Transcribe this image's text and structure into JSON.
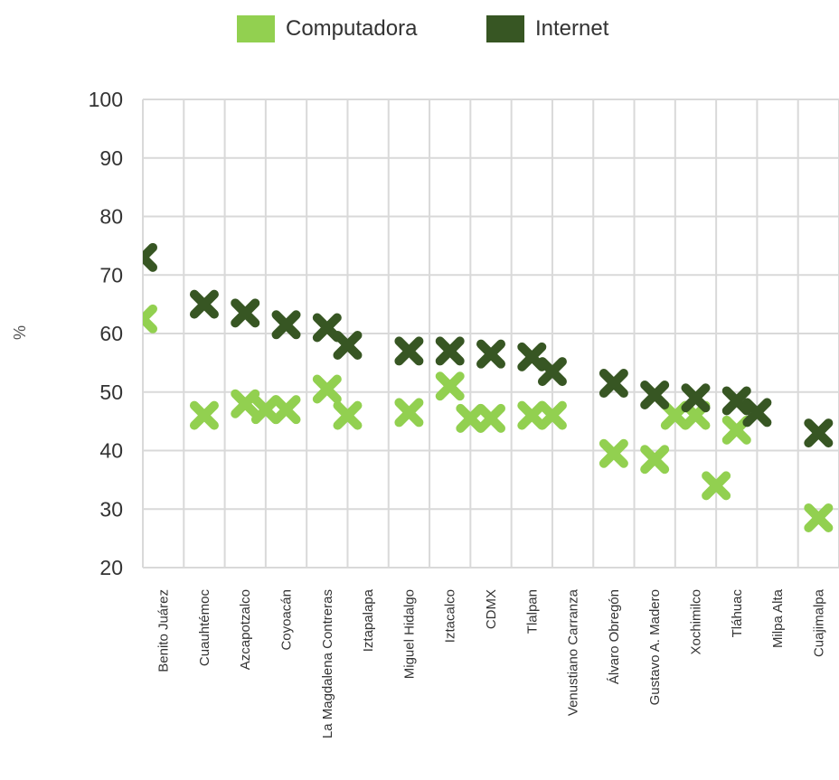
{
  "chart_data": {
    "type": "scatter",
    "ylabel": "%",
    "ylim": [
      20,
      100
    ],
    "yticks": [
      20,
      30,
      40,
      50,
      60,
      70,
      80,
      90,
      100
    ],
    "grid": true,
    "legend_position": "top",
    "marker": "cross",
    "categories": [
      "Benito Juárez",
      "Cuauhtémoc",
      "Azcapotzalco",
      "Coyoacán",
      "La Magdalena Contreras",
      "Iztapalapa",
      "Miguel Hidalgo",
      "Iztacalco",
      "CDMX",
      "Tlalpan",
      "Venustiano Carranza",
      "Álvaro Obregón",
      "Gustavo A. Madero",
      "Xochimilco",
      "Tláhuac",
      "Milpa Alta",
      "Cuajimalpa"
    ],
    "series": [
      {
        "name": "Computadora",
        "color": "#92d050",
        "points": [
          {
            "x": "Benito Juárez",
            "y": 62.5
          },
          {
            "x": "Cuauhtémoc",
            "y": 46
          },
          {
            "x": "Azcapotzalco",
            "y": 48
          },
          {
            "x": "Azcapotzalco",
            "y": 47
          },
          {
            "x": "Coyoacán",
            "y": 47
          },
          {
            "x": "La Magdalena Contreras",
            "y": 50.5
          },
          {
            "x": "La Magdalena Contreras",
            "y": 46
          },
          {
            "x": "Miguel Hidalgo",
            "y": 46.5
          },
          {
            "x": "Iztacalco",
            "y": 51
          },
          {
            "x": "Iztacalco",
            "y": 45.5
          },
          {
            "x": "CDMX",
            "y": 45.5
          },
          {
            "x": "Tlalpan",
            "y": 46
          },
          {
            "x": "Tlalpan",
            "y": 46
          },
          {
            "x": "Álvaro Obregón",
            "y": 39.5
          },
          {
            "x": "Gustavo A. Madero",
            "y": 38.5
          },
          {
            "x": "Gustavo A. Madero",
            "y": 46
          },
          {
            "x": "Xochimilco",
            "y": 46
          },
          {
            "x": "Xochimilco",
            "y": 34
          },
          {
            "x": "Tláhuac",
            "y": 43.5
          },
          {
            "x": "Cuajimalpa",
            "y": 28.5
          }
        ]
      },
      {
        "name": "Internet",
        "color": "#375623",
        "points": [
          {
            "x": "Benito Juárez",
            "y": 73
          },
          {
            "x": "Cuauhtémoc",
            "y": 65
          },
          {
            "x": "Azcapotzalco",
            "y": 63.5
          },
          {
            "x": "Coyoacán",
            "y": 61.5
          },
          {
            "x": "La Magdalena Contreras",
            "y": 61
          },
          {
            "x": "La Magdalena Contreras",
            "y": 58
          },
          {
            "x": "Miguel Hidalgo",
            "y": 57
          },
          {
            "x": "Iztacalco",
            "y": 57
          },
          {
            "x": "CDMX",
            "y": 56.5
          },
          {
            "x": "Tlalpan",
            "y": 56
          },
          {
            "x": "Tlalpan",
            "y": 53.5
          },
          {
            "x": "Álvaro Obregón",
            "y": 51.5
          },
          {
            "x": "Gustavo A. Madero",
            "y": 49.5
          },
          {
            "x": "Xochimilco",
            "y": 49
          },
          {
            "x": "Tláhuac",
            "y": 48.5
          },
          {
            "x": "Tláhuac",
            "y": 46.5
          },
          {
            "x": "Cuajimalpa",
            "y": 43
          }
        ]
      }
    ]
  }
}
